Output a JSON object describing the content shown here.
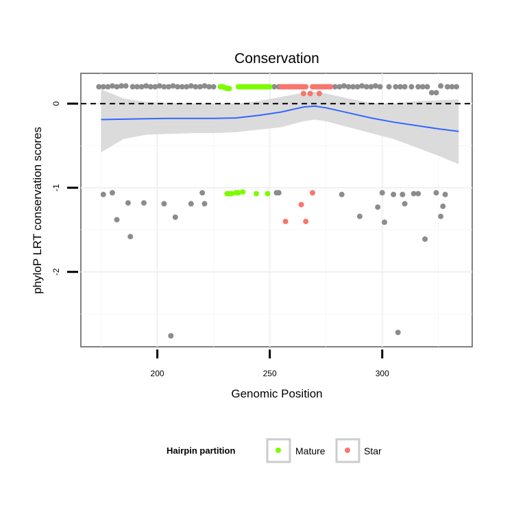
{
  "chart_data": {
    "type": "scatter",
    "title": "Conservation",
    "xlabel": "Genomic Position",
    "ylabel": "phyloP LRT conservation scores",
    "xlim": [
      166,
      340
    ],
    "ylim": [
      -2.89,
      0.36
    ],
    "x_ticks": [
      200,
      250,
      300
    ],
    "y_ticks": [
      0,
      -1,
      -2
    ],
    "reference_line": {
      "y": 0,
      "style": "dashed"
    },
    "grid": true,
    "legend": {
      "title": "Hairpin partition",
      "position": "bottom",
      "entries": [
        {
          "label": "Mature",
          "color": "#7cfc00"
        },
        {
          "label": "Star",
          "color": "#f8766d"
        }
      ]
    },
    "colors": {
      "other": "#8c8c8c",
      "Mature": "#7cfc00",
      "Star": "#f8766d",
      "smooth_line": "#3366ff",
      "ribbon": "#d9d9d9"
    },
    "smooth": {
      "x": [
        175,
        185,
        195,
        205,
        215,
        225,
        235,
        245,
        255,
        265,
        270,
        275,
        285,
        295,
        305,
        315,
        325,
        334
      ],
      "y": [
        -0.19,
        -0.185,
        -0.18,
        -0.175,
        -0.175,
        -0.175,
        -0.17,
        -0.14,
        -0.1,
        -0.04,
        -0.03,
        -0.05,
        -0.11,
        -0.17,
        -0.22,
        -0.26,
        -0.3,
        -0.33
      ],
      "lower": [
        -0.58,
        -0.42,
        -0.37,
        -0.36,
        -0.35,
        -0.35,
        -0.34,
        -0.31,
        -0.28,
        -0.21,
        -0.19,
        -0.21,
        -0.28,
        -0.35,
        -0.42,
        -0.52,
        -0.62,
        -0.72
      ],
      "upper": [
        0.17,
        0.06,
        0.02,
        0.01,
        0.0,
        0.0,
        0.0,
        0.03,
        0.08,
        0.13,
        0.14,
        0.12,
        0.06,
        0.01,
        0.0,
        0.03,
        0.04,
        0.05
      ]
    },
    "series": [
      {
        "name": "Mature",
        "points": [
          [
            228,
            0.2
          ],
          [
            229,
            0.2
          ],
          [
            230,
            0.19
          ],
          [
            231,
            0.18
          ],
          [
            232,
            0.18
          ],
          [
            236,
            0.2
          ],
          [
            237,
            0.2
          ],
          [
            238,
            0.2
          ],
          [
            239,
            0.2
          ],
          [
            240,
            0.2
          ],
          [
            241,
            0.2
          ],
          [
            242,
            0.2
          ],
          [
            243,
            0.2
          ],
          [
            244,
            0.2
          ],
          [
            245,
            0.2
          ],
          [
            246,
            0.2
          ],
          [
            247,
            0.2
          ],
          [
            248,
            0.2
          ],
          [
            249,
            0.2
          ],
          [
            250,
            0.2
          ],
          [
            231,
            -1.07
          ],
          [
            232,
            -1.07
          ],
          [
            233,
            -1.07
          ],
          [
            235,
            -1.06
          ],
          [
            236,
            -1.06
          ],
          [
            238,
            -1.05
          ],
          [
            244,
            -1.07
          ],
          [
            249,
            -1.07
          ]
        ]
      },
      {
        "name": "Star",
        "points": [
          [
            255,
            0.2
          ],
          [
            256,
            0.2
          ],
          [
            257,
            0.2
          ],
          [
            258,
            0.2
          ],
          [
            259,
            0.2
          ],
          [
            260,
            0.2
          ],
          [
            261,
            0.2
          ],
          [
            262,
            0.2
          ],
          [
            263,
            0.2
          ],
          [
            264,
            0.2
          ],
          [
            265,
            0.2
          ],
          [
            266,
            0.2
          ],
          [
            269,
            0.2
          ],
          [
            270,
            0.2
          ],
          [
            271,
            0.2
          ],
          [
            272,
            0.2
          ],
          [
            273,
            0.2
          ],
          [
            274,
            0.2
          ],
          [
            275,
            0.2
          ],
          [
            276,
            0.2
          ],
          [
            277,
            0.2
          ],
          [
            265,
            0.12
          ],
          [
            268,
            0.12
          ],
          [
            272,
            0.12
          ],
          [
            269,
            -1.06
          ],
          [
            264,
            -1.2
          ],
          [
            257,
            -1.4
          ],
          [
            266,
            -1.4
          ]
        ]
      },
      {
        "name": "Other",
        "points": [
          [
            174,
            0.2
          ],
          [
            176,
            0.2
          ],
          [
            178,
            0.2
          ],
          [
            180,
            0.21
          ],
          [
            182,
            0.2
          ],
          [
            184,
            0.21
          ],
          [
            186,
            0.21
          ],
          [
            189,
            0.2
          ],
          [
            191,
            0.2
          ],
          [
            193,
            0.2
          ],
          [
            195,
            0.21
          ],
          [
            197,
            0.2
          ],
          [
            199,
            0.2
          ],
          [
            201,
            0.21
          ],
          [
            203,
            0.2
          ],
          [
            205,
            0.2
          ],
          [
            207,
            0.21
          ],
          [
            209,
            0.2
          ],
          [
            211,
            0.2
          ],
          [
            213,
            0.2
          ],
          [
            215,
            0.21
          ],
          [
            217,
            0.2
          ],
          [
            219,
            0.2
          ],
          [
            221,
            0.21
          ],
          [
            223,
            0.2
          ],
          [
            225,
            0.2
          ],
          [
            252,
            0.2
          ],
          [
            254,
            0.2
          ],
          [
            279,
            0.2
          ],
          [
            281,
            0.2
          ],
          [
            283,
            0.21
          ],
          [
            285,
            0.2
          ],
          [
            287,
            0.2
          ],
          [
            289,
            0.2
          ],
          [
            291,
            0.21
          ],
          [
            293,
            0.2
          ],
          [
            295,
            0.2
          ],
          [
            297,
            0.21
          ],
          [
            299,
            0.2
          ],
          [
            303,
            0.2
          ],
          [
            306,
            0.2
          ],
          [
            308,
            0.2
          ],
          [
            310,
            0.2
          ],
          [
            313,
            0.2
          ],
          [
            316,
            0.2
          ],
          [
            318,
            0.2
          ],
          [
            320,
            0.2
          ],
          [
            322,
            0.13
          ],
          [
            324,
            0.13
          ],
          [
            326,
            0.21
          ],
          [
            329,
            0.2
          ],
          [
            331,
            0.2
          ],
          [
            333,
            0.2
          ],
          [
            176,
            -1.08
          ],
          [
            180,
            -1.06
          ],
          [
            182,
            -1.38
          ],
          [
            187,
            -1.18
          ],
          [
            188,
            -1.58
          ],
          [
            194,
            -1.18
          ],
          [
            203,
            -1.19
          ],
          [
            206,
            -2.76
          ],
          [
            208,
            -1.35
          ],
          [
            215,
            -1.19
          ],
          [
            220,
            -1.06
          ],
          [
            221,
            -1.19
          ],
          [
            253,
            -1.06
          ],
          [
            254,
            -1.06
          ],
          [
            282,
            -1.08
          ],
          [
            290,
            -1.34
          ],
          [
            298,
            -1.23
          ],
          [
            300,
            -1.06
          ],
          [
            301,
            -1.41
          ],
          [
            305,
            -1.08
          ],
          [
            307,
            -2.72
          ],
          [
            309,
            -1.08
          ],
          [
            310,
            -1.19
          ],
          [
            314,
            -1.07
          ],
          [
            316,
            -1.07
          ],
          [
            319,
            -1.61
          ],
          [
            324,
            -1.06
          ],
          [
            326,
            -1.34
          ],
          [
            327,
            -1.22
          ],
          [
            328,
            -1.08
          ]
        ]
      }
    ]
  }
}
